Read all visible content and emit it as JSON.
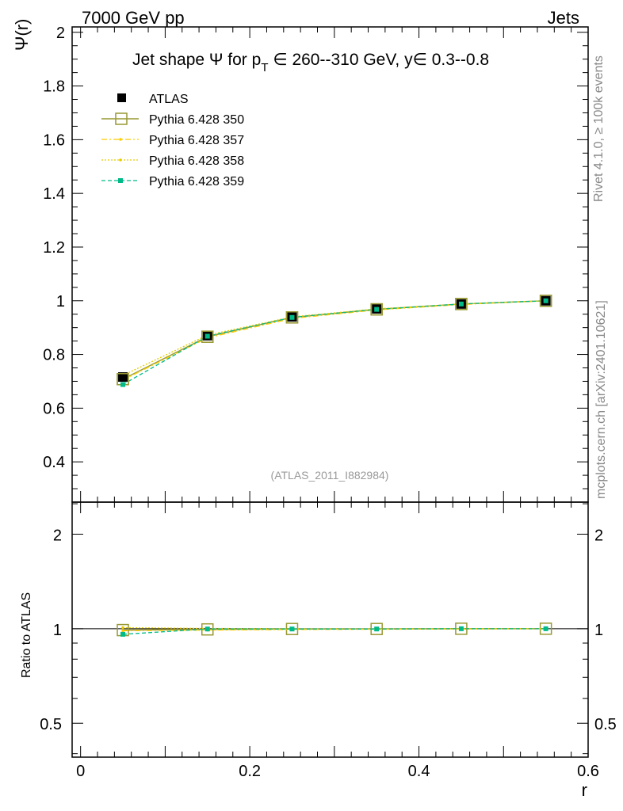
{
  "header": {
    "left": "7000 GeV pp",
    "right": "Jets"
  },
  "side_labels": {
    "rivet": "Rivet 4.1.0, ≥ 100k events",
    "mcplots": "mcplots.cern.ch [arXiv:2401.10621]"
  },
  "watermark": "(ATLAS_2011_I882984)",
  "colors": {
    "atlas": "#000000",
    "p350": "#999933",
    "p357": "#ffcc00",
    "p358": "#e6cc00",
    "p359": "#00bb88"
  },
  "chart_data": {
    "type": "line",
    "title": {
      "prefix": "Jet shape Ψ for p",
      "sub": "T",
      "rest": " ∈ 260--310 GeV, y∈ 0.3--0.8"
    },
    "ylabel": "Ψ(r)",
    "xlabel": "r",
    "ratio_ylabel": "Ratio to ATLAS",
    "xlim": [
      -0.01,
      0.6
    ],
    "ylim": [
      0.25,
      2.02
    ],
    "ratio_ylim": [
      0.39,
      2.53
    ],
    "x_ticks": [
      "0",
      "0.2",
      "0.4",
      "0.6"
    ],
    "y_ticks": [
      "0.4",
      "0.6",
      "0.8",
      "1",
      "1.2",
      "1.4",
      "1.6",
      "1.8",
      "2"
    ],
    "ratio_ticks": [
      "0.5",
      "1",
      "2"
    ],
    "x": [
      0.05,
      0.15,
      0.25,
      0.35,
      0.45,
      0.55
    ],
    "series": [
      {
        "name": "ATLAS",
        "values": [
          0.716,
          0.87,
          0.94,
          0.97,
          0.988,
          1.0
        ],
        "errors": [
          0.012,
          0.008,
          0.006,
          0.004,
          0.003,
          0.0
        ]
      },
      {
        "name": "Pythia 6.428 350",
        "values": [
          0.708,
          0.866,
          0.938,
          0.968,
          0.988,
          1.0
        ]
      },
      {
        "name": "Pythia 6.428 357",
        "values": [
          0.705,
          0.862,
          0.934,
          0.966,
          0.986,
          1.0
        ]
      },
      {
        "name": "Pythia 6.428 358",
        "values": [
          0.722,
          0.872,
          0.94,
          0.97,
          0.988,
          1.0
        ]
      },
      {
        "name": "Pythia 6.428 359",
        "values": [
          0.688,
          0.868,
          0.938,
          0.968,
          0.988,
          1.0
        ]
      }
    ],
    "ratios": [
      {
        "name": "Pythia 6.428 350",
        "values": [
          0.99,
          0.995,
          0.998,
          0.998,
          1.0,
          1.0
        ]
      },
      {
        "name": "Pythia 6.428 357",
        "values": [
          0.985,
          0.99,
          0.994,
          0.996,
          0.998,
          1.0
        ]
      },
      {
        "name": "Pythia 6.428 358",
        "values": [
          1.008,
          1.002,
          1.0,
          1.0,
          1.0,
          1.0
        ]
      },
      {
        "name": "Pythia 6.428 359",
        "values": [
          0.96,
          0.998,
          0.998,
          0.998,
          1.0,
          1.0
        ]
      }
    ]
  }
}
